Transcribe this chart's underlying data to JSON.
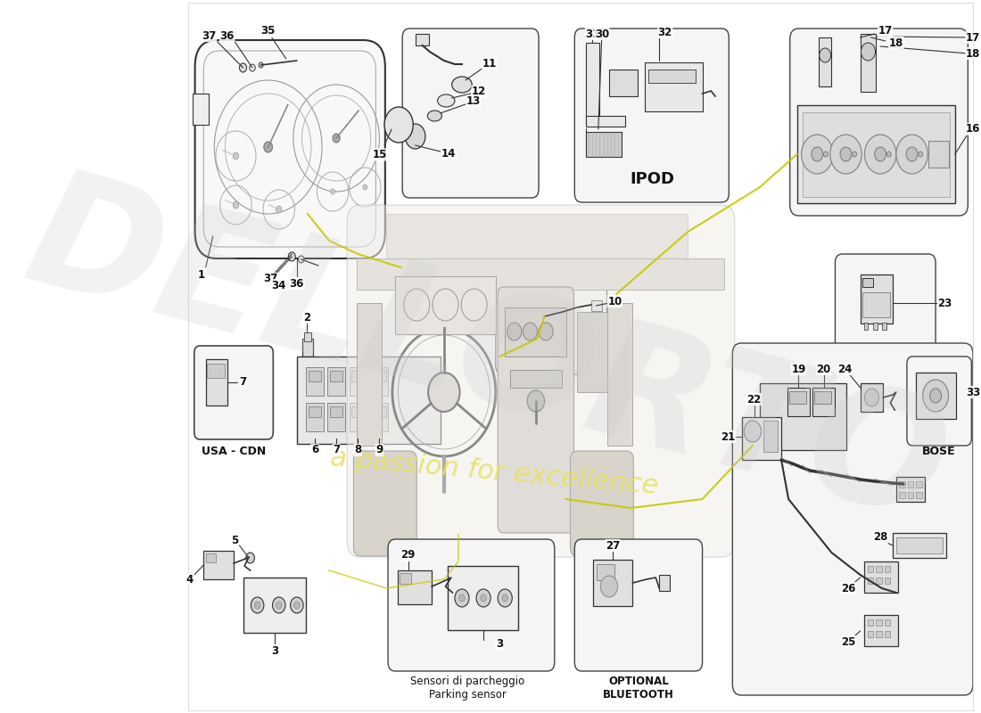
{
  "bg_color": "#ffffff",
  "lc": "#333333",
  "lc_light": "#888888",
  "watermark_text": "a passion for excellence",
  "wm_color": "#e8e060",
  "brand_wm": "DELLORTO",
  "brand_color": "#cccccc",
  "ipod_label": "IPOD",
  "bt_label": "OPTIONAL\nBLUETOOTH",
  "usa_label": "USA - CDN",
  "bose_label": "BOSE",
  "parking_label": "Sensori di parcheggio\nParking sensor"
}
